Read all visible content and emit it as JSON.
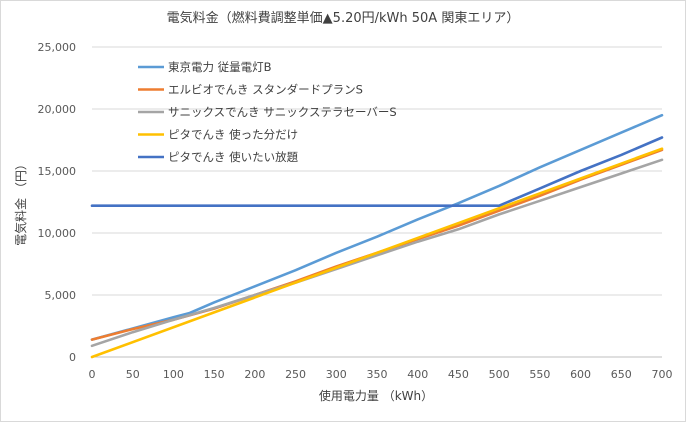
{
  "chart_data": {
    "type": "line",
    "title": "電気料金（燃料費調整単価▲5.20円/kWh 50A 関東エリア）",
    "xlabel": "使用電力量 （kWh）",
    "ylabel": "電気料金 （円）",
    "x_ticks": [
      "0",
      "50",
      "100",
      "150",
      "200",
      "250",
      "300",
      "350",
      "400",
      "450",
      "500",
      "550",
      "600",
      "650",
      "700"
    ],
    "y_ticks": [
      "0",
      "5,000",
      "10,000",
      "15,000",
      "20,000",
      "25,000"
    ],
    "xlim": [
      0,
      700
    ],
    "ylim": [
      0,
      25000
    ],
    "grid": "horizontal",
    "legend_position": "top-left-inside",
    "series": [
      {
        "name": "東京電力 従量電灯B",
        "color": "#5B9BD5",
        "x": [
          0,
          50,
          100,
          120,
          150,
          200,
          250,
          300,
          350,
          400,
          450,
          500,
          550,
          600,
          650,
          700
        ],
        "y": [
          1400,
          2300,
          3200,
          3550,
          4400,
          5700,
          7000,
          8400,
          9700,
          11100,
          12400,
          13800,
          15300,
          16700,
          18100,
          19500
        ]
      },
      {
        "name": "エルビオでんき スタンダードプランS",
        "color": "#ED7D31",
        "x": [
          0,
          50,
          100,
          150,
          200,
          250,
          300,
          350,
          400,
          450,
          500,
          550,
          600,
          650,
          700
        ],
        "y": [
          1400,
          2250,
          3000,
          3900,
          5000,
          6100,
          7300,
          8400,
          9500,
          10600,
          11800,
          13000,
          14300,
          15500,
          16700
        ]
      },
      {
        "name": "サニックスでんき サニックステラセーバーS",
        "color": "#A5A5A5",
        "x": [
          0,
          50,
          100,
          150,
          200,
          250,
          300,
          350,
          400,
          450,
          500,
          550,
          600,
          650,
          700
        ],
        "y": [
          900,
          2000,
          3000,
          3950,
          5000,
          6000,
          7100,
          8200,
          9300,
          10300,
          11500,
          12600,
          13700,
          14800,
          15900
        ]
      },
      {
        "name": "ピタでんき 使った分だけ",
        "color": "#FFC000",
        "x": [
          0,
          700
        ],
        "y": [
          0,
          16800
        ]
      },
      {
        "name": "ピタでんき 使いたい放題",
        "color": "#4472C4",
        "x": [
          0,
          500,
          550,
          600,
          650,
          700
        ],
        "y": [
          12200,
          12200,
          13600,
          15000,
          16300,
          17700
        ]
      }
    ]
  }
}
